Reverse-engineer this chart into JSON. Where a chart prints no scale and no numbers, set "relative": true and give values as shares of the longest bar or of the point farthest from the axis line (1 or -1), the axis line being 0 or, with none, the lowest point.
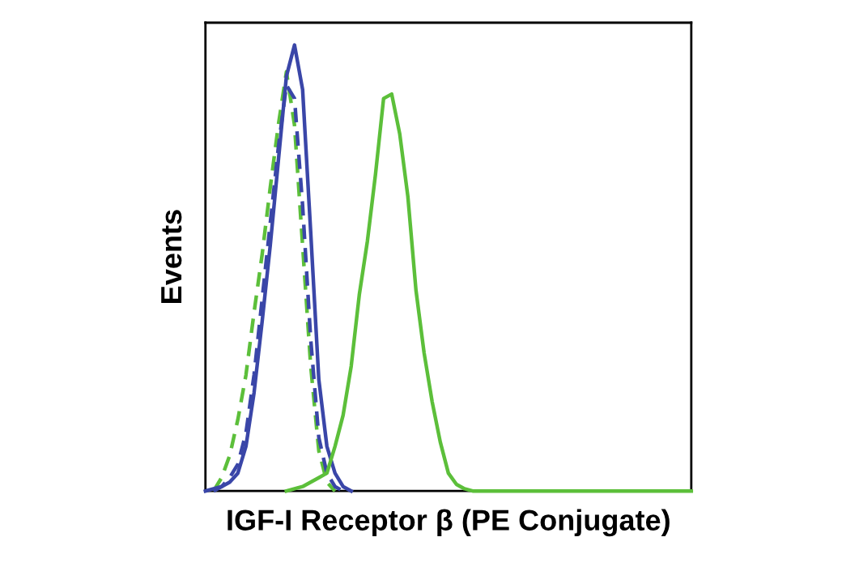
{
  "chart_data": {
    "type": "line",
    "relative": true,
    "xlabel": "IGF-I Receptor β (PE Conjugate)",
    "ylabel": "Events",
    "legend": false,
    "marker": "none",
    "categories": [
      null,
      null,
      null,
      null,
      null,
      null,
      null,
      null,
      null,
      null,
      null,
      null,
      null,
      null,
      null,
      null,
      null,
      null,
      null,
      null,
      null,
      null,
      null,
      null,
      null,
      null,
      null,
      null,
      null,
      null,
      null,
      null,
      null,
      null,
      null,
      null,
      null,
      null,
      null,
      null,
      null,
      null,
      null,
      null,
      null,
      null,
      null,
      null,
      null,
      null,
      null,
      null,
      null,
      null,
      null,
      null,
      null,
      null,
      null,
      null,
      null
    ],
    "series": [
      {
        "color": "#5cbf3a",
        "line_style": "dashed",
        "values": [
          null,
          0,
          0.03,
          0.08,
          0.16,
          0.26,
          0.4,
          0.53,
          0.68,
          0.82,
          0.94,
          0.82,
          0.55,
          0.28,
          0.09,
          0.02,
          0,
          null,
          null,
          null,
          null,
          null,
          null,
          null,
          null,
          null,
          null,
          null,
          null,
          null,
          null,
          null,
          null,
          null,
          null,
          null,
          null,
          null,
          null,
          null,
          null,
          null,
          null,
          null,
          null,
          null,
          null,
          null,
          null,
          null,
          null,
          null,
          null,
          null,
          null,
          null,
          null,
          null,
          null,
          null,
          null
        ]
      },
      {
        "color": "#3a46a8",
        "line_style": "dashed",
        "values": [
          null,
          0,
          0.01,
          0.03,
          0.06,
          0.13,
          0.26,
          0.43,
          0.6,
          0.77,
          0.91,
          0.88,
          0.64,
          0.34,
          0.12,
          0.04,
          0.01,
          0,
          null,
          null,
          null,
          null,
          null,
          null,
          null,
          null,
          null,
          null,
          null,
          null,
          null,
          null,
          null,
          null,
          null,
          null,
          null,
          null,
          null,
          null,
          null,
          null,
          null,
          null,
          null,
          null,
          null,
          null,
          null,
          null,
          null,
          null,
          null,
          null,
          null,
          null,
          null,
          null,
          null,
          null,
          null
        ]
      },
      {
        "color": "#3a46a8",
        "line_style": "solid",
        "values": [
          0,
          0.005,
          0.01,
          0.02,
          0.04,
          0.1,
          0.22,
          0.38,
          0.55,
          0.74,
          0.93,
          1.0,
          0.9,
          0.58,
          0.25,
          0.1,
          0.04,
          0.01,
          0,
          null,
          null,
          null,
          null,
          null,
          null,
          null,
          null,
          null,
          null,
          null,
          null,
          null,
          null,
          null,
          null,
          null,
          null,
          null,
          null,
          null,
          null,
          null,
          null,
          null,
          null,
          null,
          null,
          null,
          null,
          null,
          null,
          null,
          null,
          null,
          null,
          null,
          null,
          null,
          null,
          null,
          null
        ]
      },
      {
        "color": "#5cbf3a",
        "line_style": "solid",
        "values": [
          null,
          null,
          null,
          null,
          null,
          null,
          null,
          null,
          null,
          null,
          0,
          0.005,
          0.01,
          0.02,
          0.03,
          0.04,
          0.1,
          0.17,
          0.28,
          0.44,
          0.56,
          0.71,
          0.88,
          0.89,
          0.8,
          0.66,
          0.45,
          0.31,
          0.2,
          0.11,
          0.04,
          0.015,
          0.005,
          0,
          0,
          0,
          0,
          0,
          0,
          0,
          0,
          0,
          0,
          0,
          0,
          0,
          0,
          0,
          0,
          0,
          0,
          0,
          0,
          0,
          0,
          0,
          0,
          0,
          0,
          0,
          0
        ]
      }
    ]
  }
}
